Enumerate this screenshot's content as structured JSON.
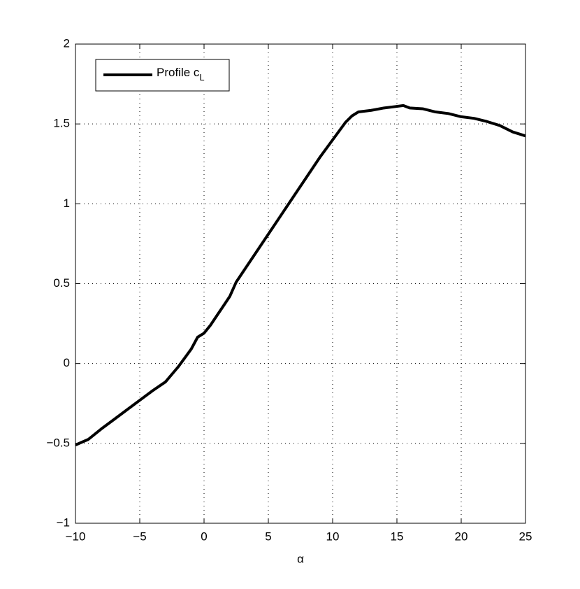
{
  "chart_data": {
    "type": "line",
    "x_label": "α",
    "x": [
      -10,
      -9,
      -8,
      -7,
      -6,
      -5,
      -4,
      -3,
      -2,
      -1,
      -0.5,
      0,
      0.5,
      1,
      1.5,
      2,
      2.5,
      3,
      4,
      5,
      6,
      7,
      8,
      9,
      10,
      11,
      11.5,
      12,
      12.5,
      13,
      14,
      15,
      15.5,
      16,
      17,
      18,
      19,
      20,
      21,
      22,
      23,
      24,
      25
    ],
    "series": [
      {
        "name": "Profile cL",
        "color": "#000000",
        "values": [
          -0.51,
          -0.475,
          -0.41,
          -0.35,
          -0.29,
          -0.23,
          -0.17,
          -0.115,
          -0.02,
          0.09,
          0.165,
          0.19,
          0.24,
          0.3,
          0.36,
          0.42,
          0.51,
          0.57,
          0.69,
          0.81,
          0.93,
          1.05,
          1.17,
          1.29,
          1.4,
          1.51,
          1.55,
          1.575,
          1.58,
          1.585,
          1.6,
          1.61,
          1.615,
          1.6,
          1.595,
          1.575,
          1.565,
          1.545,
          1.535,
          1.515,
          1.49,
          1.45,
          1.425
        ]
      }
    ],
    "xlim": [
      -10,
      25
    ],
    "ylim": [
      -1,
      2
    ],
    "xticks": [
      {
        "value": -10,
        "label": "−10"
      },
      {
        "value": -5,
        "label": "−5"
      },
      0,
      5,
      10,
      15,
      20,
      25
    ],
    "yticks": [
      {
        "value": -1,
        "label": "−1"
      },
      {
        "value": -0.5,
        "label": "−0.5"
      },
      0,
      0.5,
      1,
      1.5,
      2
    ],
    "grid": true,
    "legend": "upper left"
  }
}
